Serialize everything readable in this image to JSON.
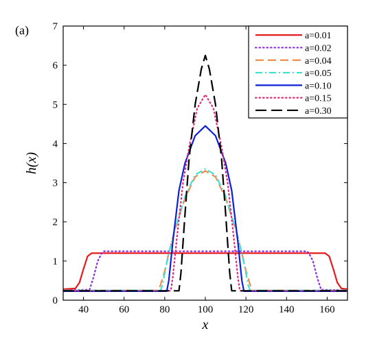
{
  "chart_data": {
    "type": "line",
    "panel_label": "(a)",
    "xlabel": "x",
    "ylabel": "h(x)",
    "xlim": [
      30,
      170
    ],
    "ylim": [
      0,
      7
    ],
    "xticks": [
      40,
      60,
      80,
      100,
      120,
      140,
      160
    ],
    "yticks": [
      0,
      1,
      2,
      3,
      4,
      5,
      6,
      7
    ],
    "grid": false,
    "legend_position": "top-right",
    "series": [
      {
        "name": "a=0.01",
        "color": "#e6191e",
        "style": "solid",
        "x": [
          30,
          36,
          38,
          40,
          42,
          44,
          159,
          161,
          163,
          165,
          167,
          170
        ],
        "y": [
          0.28,
          0.3,
          0.45,
          0.8,
          1.12,
          1.2,
          1.2,
          1.12,
          0.8,
          0.45,
          0.3,
          0.28
        ]
      },
      {
        "name": "a=0.02",
        "color": "#8a2be2",
        "style": "dotted",
        "x": [
          30,
          43,
          45,
          47,
          49,
          50,
          150,
          151,
          153,
          155,
          157,
          170
        ],
        "y": [
          0.25,
          0.27,
          0.6,
          1.0,
          1.2,
          1.25,
          1.25,
          1.2,
          1.0,
          0.6,
          0.27,
          0.25
        ]
      },
      {
        "name": "a=0.04",
        "color": "#f08c4a",
        "style": "dashed",
        "x": [
          30,
          77,
          78,
          80,
          82,
          85,
          90,
          95,
          100,
          105,
          110,
          115,
          118,
          120,
          122,
          123,
          170
        ],
        "y": [
          0.25,
          0.25,
          0.4,
          0.75,
          1.2,
          1.8,
          2.6,
          3.15,
          3.3,
          3.15,
          2.6,
          1.8,
          1.2,
          0.75,
          0.4,
          0.25,
          0.25
        ]
      },
      {
        "name": "a=0.05",
        "color": "#40e0d0",
        "style": "dashdot",
        "x": [
          30,
          78,
          79,
          80,
          82,
          85,
          90,
          95,
          100,
          105,
          110,
          115,
          118,
          120,
          121,
          122,
          170
        ],
        "y": [
          0.25,
          0.25,
          0.4,
          0.7,
          1.2,
          1.8,
          2.65,
          3.2,
          3.35,
          3.2,
          2.65,
          1.8,
          1.2,
          0.7,
          0.4,
          0.25,
          0.25
        ]
      },
      {
        "name": "a=0.10",
        "color": "#0a1fd6",
        "style": "solid",
        "x": [
          30,
          81,
          82,
          84,
          87,
          90,
          95,
          100,
          105,
          110,
          113,
          116,
          118,
          119,
          170
        ],
        "y": [
          0.23,
          0.23,
          0.5,
          1.5,
          2.8,
          3.5,
          4.2,
          4.45,
          4.2,
          3.5,
          2.8,
          1.5,
          0.5,
          0.23,
          0.23
        ]
      },
      {
        "name": "a=0.15",
        "color": "#e0297a",
        "style": "dotted",
        "x": [
          30,
          83,
          84,
          86,
          89,
          92,
          96,
          100,
          104,
          108,
          111,
          114,
          116,
          117,
          170
        ],
        "y": [
          0.24,
          0.24,
          0.6,
          1.6,
          3.0,
          3.9,
          4.9,
          5.25,
          4.9,
          3.9,
          3.0,
          1.6,
          0.6,
          0.24,
          0.24
        ]
      },
      {
        "name": "a=0.30",
        "color": "#000000",
        "style": "longdash",
        "x": [
          30,
          87,
          88,
          90,
          92,
          95,
          98,
          100,
          102,
          105,
          108,
          110,
          112,
          113,
          170
        ],
        "y": [
          0.24,
          0.24,
          0.7,
          2.2,
          3.6,
          5.0,
          5.9,
          6.25,
          5.9,
          5.0,
          3.6,
          2.2,
          0.7,
          0.24,
          0.24
        ]
      }
    ]
  }
}
